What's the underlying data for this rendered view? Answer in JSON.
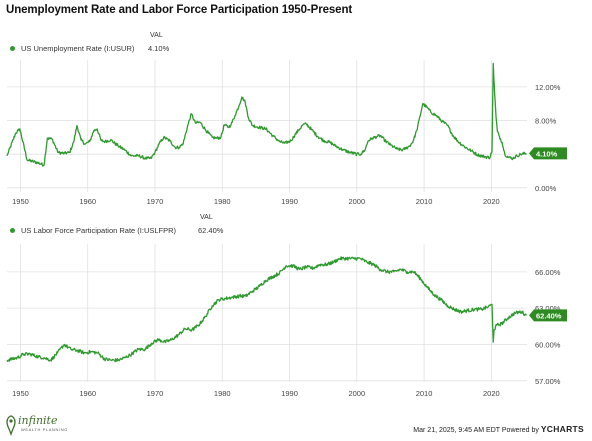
{
  "title": "Unemployment Rate and Labor Force Participation 1950-Present",
  "colors": {
    "line": "#2e9a2e",
    "badge": "#2e8b22",
    "grid": "#e1e1e1",
    "axis_text": "#444444"
  },
  "chart_data": [
    {
      "type": "line",
      "series": [
        {
          "name": "US Unemployment Rate (I:USUR)",
          "value_label": "4.10%",
          "x": [
            1948.0,
            1949.3,
            1949.9,
            1951.0,
            1952.5,
            1953.5,
            1954.0,
            1954.7,
            1955.6,
            1956.5,
            1957.3,
            1957.9,
            1958.4,
            1959.0,
            1959.6,
            1960.3,
            1960.9,
            1961.4,
            1962.0,
            1962.6,
            1963.4,
            1964.5,
            1965.5,
            1966.5,
            1967.6,
            1968.6,
            1969.4,
            1970.0,
            1970.6,
            1971.3,
            1972.2,
            1973.0,
            1973.6,
            1974.2,
            1974.8,
            1975.4,
            1976.0,
            1976.7,
            1977.5,
            1978.5,
            1979.2,
            1979.8,
            1980.3,
            1980.9,
            1981.3,
            1981.9,
            1982.5,
            1982.9,
            1983.4,
            1983.9,
            1984.5,
            1985.5,
            1986.5,
            1987.5,
            1988.5,
            1989.3,
            1990.2,
            1990.8,
            1991.4,
            1992.0,
            1992.5,
            1993.3,
            1994.2,
            1995.1,
            1996.0,
            1997.0,
            1998.0,
            1999.0,
            2000.0,
            2000.6,
            2001.2,
            2001.7,
            2002.3,
            2003.0,
            2003.5,
            2004.2,
            2005.0,
            2006.0,
            2006.8,
            2007.3,
            2007.9,
            2008.4,
            2008.9,
            2009.4,
            2009.8,
            2010.4,
            2011.0,
            2011.8,
            2012.7,
            2013.5,
            2014.3,
            2015.2,
            2016.0,
            2017.0,
            2018.0,
            2019.0,
            2019.8,
            2020.1,
            2020.28,
            2020.36,
            2020.5,
            2020.7,
            2020.9,
            2021.2,
            2021.6,
            2022.0,
            2022.6,
            2023.2,
            2023.8,
            2024.4,
            2025.2
          ],
          "y": [
            3.8,
            6.5,
            7.0,
            3.3,
            3.0,
            2.7,
            5.9,
            5.8,
            4.2,
            4.1,
            4.2,
            5.4,
            7.4,
            5.7,
            5.2,
            5.5,
            6.8,
            7.0,
            5.6,
            5.5,
            5.7,
            5.0,
            4.5,
            3.8,
            3.8,
            3.5,
            3.5,
            4.2,
            5.2,
            6.0,
            5.6,
            4.8,
            4.8,
            5.3,
            7.2,
            8.8,
            7.7,
            7.8,
            6.9,
            6.0,
            5.9,
            6.0,
            7.5,
            7.2,
            7.5,
            8.6,
            9.8,
            10.8,
            10.2,
            8.3,
            7.4,
            7.2,
            7.0,
            6.2,
            5.5,
            5.3,
            5.6,
            6.3,
            6.9,
            7.5,
            7.6,
            6.9,
            6.1,
            5.6,
            5.4,
            4.9,
            4.5,
            4.2,
            4.0,
            4.0,
            4.5,
            5.6,
            5.9,
            6.1,
            6.2,
            5.6,
            5.1,
            4.6,
            4.5,
            4.7,
            5.0,
            5.6,
            6.8,
            8.5,
            10.0,
            9.6,
            9.0,
            8.6,
            7.9,
            7.4,
            6.2,
            5.4,
            4.9,
            4.4,
            3.9,
            3.7,
            3.6,
            4.4,
            14.8,
            13.2,
            11.1,
            8.4,
            6.7,
            6.1,
            5.4,
            4.0,
            3.6,
            3.5,
            3.8,
            4.0,
            4.1
          ],
          "jitter": 0.18
        }
      ],
      "xlim": [
        1948,
        2025.3
      ],
      "ylim": [
        -0.5,
        15.2
      ],
      "x_ticks": [
        1950,
        1960,
        1970,
        1980,
        1990,
        2000,
        2010,
        2020
      ],
      "x_tick_labels": [
        "1950",
        "1960",
        "1970",
        "1980",
        "1990",
        "2000",
        "2010",
        "2020"
      ],
      "y_ticks": [
        0,
        4,
        8,
        12
      ],
      "y_tick_labels": [
        "0.00%",
        "4.00%",
        "8.00%",
        "12.00%"
      ],
      "legend_header": "VAL",
      "grid": true,
      "last_value_label": "4.10%",
      "last_value": 4.1
    },
    {
      "type": "line",
      "series": [
        {
          "name": "US Labor Force Participation Rate (I:USLFPR)",
          "value_label": "62.40%",
          "x": [
            1948.0,
            1949.5,
            1950.5,
            1951.5,
            1952.5,
            1953.5,
            1954.5,
            1955.5,
            1956.5,
            1957.5,
            1958.5,
            1959.5,
            1960.5,
            1961.5,
            1962.5,
            1963.5,
            1964.5,
            1965.5,
            1966.5,
            1967.5,
            1968.5,
            1969.5,
            1970.5,
            1971.5,
            1972.5,
            1973.5,
            1974.5,
            1975.5,
            1976.5,
            1977.5,
            1978.5,
            1979.5,
            1980.5,
            1981.5,
            1982.5,
            1983.5,
            1984.5,
            1985.5,
            1986.5,
            1987.5,
            1988.5,
            1989.5,
            1990.5,
            1991.5,
            1992.5,
            1993.5,
            1994.5,
            1995.5,
            1996.5,
            1997.5,
            1998.5,
            1999.5,
            2000.5,
            2001.5,
            2002.5,
            2003.5,
            2004.5,
            2005.5,
            2006.5,
            2007.5,
            2008.5,
            2009.5,
            2010.5,
            2011.5,
            2012.5,
            2013.5,
            2014.5,
            2015.5,
            2016.5,
            2017.5,
            2018.5,
            2019.5,
            2020.1,
            2020.28,
            2020.4,
            2020.8,
            2021.5,
            2022.5,
            2023.5,
            2024.5,
            2025.2
          ],
          "y": [
            58.7,
            58.9,
            59.2,
            59.2,
            59.0,
            58.9,
            58.7,
            59.3,
            60.0,
            59.6,
            59.5,
            59.3,
            59.4,
            59.3,
            58.8,
            58.7,
            58.7,
            58.9,
            59.2,
            59.6,
            59.6,
            60.1,
            60.4,
            60.2,
            60.4,
            60.8,
            61.3,
            61.2,
            61.6,
            62.3,
            63.2,
            63.7,
            63.8,
            63.9,
            64.0,
            64.0,
            64.4,
            64.8,
            65.3,
            65.6,
            65.9,
            66.5,
            66.5,
            66.2,
            66.4,
            66.3,
            66.6,
            66.6,
            66.8,
            67.1,
            67.1,
            67.1,
            67.1,
            66.8,
            66.6,
            66.2,
            66.0,
            66.0,
            66.2,
            66.0,
            66.0,
            65.4,
            64.7,
            64.1,
            63.7,
            63.2,
            62.9,
            62.7,
            62.8,
            62.9,
            62.9,
            63.1,
            63.3,
            60.2,
            61.2,
            61.6,
            61.7,
            62.2,
            62.6,
            62.7,
            62.4
          ],
          "jitter": 0.14
        }
      ],
      "xlim": [
        1948,
        2025.3
      ],
      "ylim": [
        56.9,
        68.3
      ],
      "x_ticks": [
        1950,
        1960,
        1970,
        1980,
        1990,
        2000,
        2010,
        2020
      ],
      "x_tick_labels": [
        "1950",
        "1960",
        "1970",
        "1980",
        "1990",
        "2000",
        "2010",
        "2020"
      ],
      "y_ticks": [
        57,
        60,
        63,
        66
      ],
      "y_tick_labels": [
        "57.00%",
        "60.00%",
        "63.00%",
        "66.00%"
      ],
      "legend_header": "VAL",
      "grid": true,
      "last_value_label": "62.40%",
      "last_value": 62.4
    }
  ],
  "footer": {
    "timestamp": "Mar 21, 2025, 9:45 AM EDT Powered by",
    "brand": "YCHARTS"
  },
  "logo": {
    "name": "infinite",
    "subtitle": "WEALTH PLANNING"
  }
}
